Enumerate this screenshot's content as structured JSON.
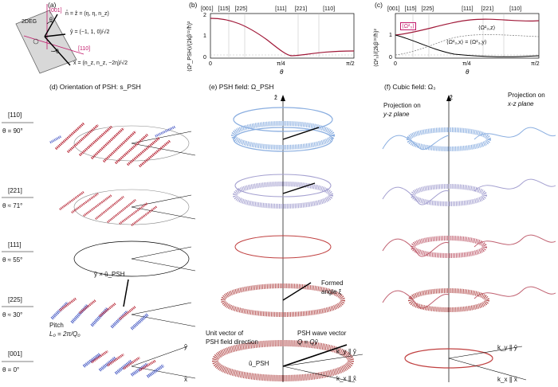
{
  "panel_a": {
    "label": "(a)",
    "dir_001": "[001]",
    "plane_label": "2DEG",
    "n_eq": "n̂ = ẑ = (η, η, n_z)",
    "y_eq": "ŷ = (−1, 1, 0)/√2",
    "x_eq": "x̂ = (n_z, n_z, −2η)/√2",
    "theta": "θ",
    "dir_110": "[110]",
    "zhat": "ẑ",
    "yhat": "ŷ"
  },
  "panel_b": {
    "label": "(b)",
    "top_ticks": [
      "[001]",
      "[115]",
      "[225]",
      "[111]",
      "[221]",
      "[110]"
    ],
    "ylabel": "⟨Ω²_PSH⟩/(2kβ⁽¹⁾/ħ)²",
    "yticks": [
      "0",
      "1",
      "2"
    ],
    "xticks": [
      "0",
      "π/4",
      "π/2"
    ],
    "xlabel": "θ"
  },
  "panel_c": {
    "label": "(c)",
    "top_ticks": [
      "[001]",
      "[115]",
      "[225]",
      "[111]",
      "[221]",
      "[110]"
    ],
    "ylabel": "⟨Ω²₃⟩/(2kβ⁽³⁾/ħ)²",
    "yticks": [
      "0",
      "1"
    ],
    "xticks": [
      "0",
      "π/4",
      "π/2"
    ],
    "xlabel": "θ",
    "curve_total": "⟨Ω²₃⟩",
    "curve_z": "⟨Ω²₃,z⟩",
    "curve_xy": "⟨Ω²₃,x⟩ = ⟨Ω²₃,y⟩"
  },
  "panel_d": {
    "title": "(d) Orientation of PSH: s_PSH",
    "cross_label": "ŷ × û_PSH",
    "pitch_label": "Pitch",
    "pitch_eq": "L₀ = 2π/Q₀",
    "yhat": "ŷ",
    "xhat": "x̂"
  },
  "panel_e": {
    "title": "(e) PSH field: Ω_PSH",
    "zhat": "ẑ",
    "formed_angle": "Formed",
    "formed_angle2": "angle ξ",
    "unit_vec1": "Unit vector of",
    "unit_vec2": "PSH field direction",
    "wave_vec1": "PSH wave vector",
    "wave_vec2": "Q = Qŷ",
    "u_label": "û_PSH",
    "ky_label": "k_y ∥ ŷ",
    "kx_label": "k_x ∥ x̂"
  },
  "panel_f": {
    "title": "(f) Cubic field: Ω₃",
    "zhat": "ẑ",
    "proj_yz1": "Projection on",
    "proj_yz2": "y-z plane",
    "proj_xz1": "Projection on",
    "proj_xz2": "x-z plane",
    "ky_label": "k_y ∥ ŷ",
    "kx_label": "k_x ∥ x̂"
  },
  "rows": [
    {
      "dir": "[110]",
      "angle": "θ = 90°"
    },
    {
      "dir": "[221]",
      "angle": "θ ≈ 71°"
    },
    {
      "dir": "[111]",
      "angle": "θ ≈ 55°"
    },
    {
      "dir": "[225]",
      "angle": "θ ≈ 30°"
    },
    {
      "dir": "[001]",
      "angle": "θ = 0°"
    }
  ],
  "colors": {
    "magenta": "#c2186a",
    "red": "#b03040",
    "blue": "#3a4fc0",
    "lightblue": "#8aaee0"
  }
}
